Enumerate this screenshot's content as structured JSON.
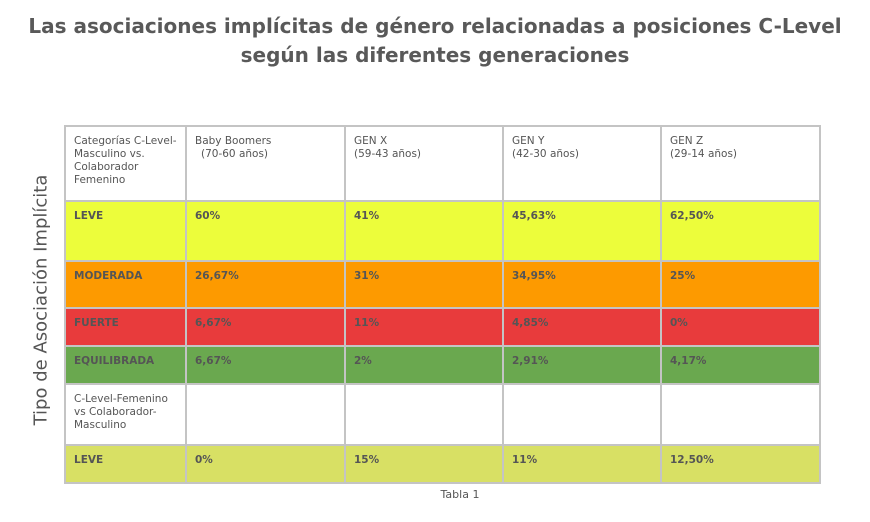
{
  "title_line1": "Las asociaciones implícitas de género relacionadas a posiciones C-Level",
  "title_line2": "según las diferentes generaciones",
  "y_axis_label": "Tipo de Asociación Implícita",
  "caption": "Tabla 1",
  "colors": {
    "leve": "#ecfd3b",
    "moderada": "#fd9a00",
    "fuerte": "#e83b3c",
    "equilibrada": "#6aa84f",
    "leve2": "#d8e064"
  },
  "chart_data": {
    "type": "table",
    "title": "Las asociaciones implícitas de género relacionadas a posiciones C-Level según las diferentes generaciones",
    "columns": [
      "Categorías C-Level-Masculino vs. Colaborador Femenino",
      "Baby Boomers (70-60 años)",
      "GEN X (59-43 años)",
      "GEN Y (42-30 años)",
      "GEN Z (29-14 años)"
    ],
    "header": {
      "c0": "Categorías C-Level-Masculino vs. Colaborador Femenino",
      "c1a": "Baby Boomers",
      "c1b": "(70-60 años)",
      "c2a": "GEN X",
      "c2b": "(59-43 años)",
      "c3a": "GEN Y",
      "c3b": "(42-30 años)",
      "c4a": "GEN Z",
      "c4b": "(29-14 años)"
    },
    "rows": [
      {
        "label": "LEVE",
        "values": [
          "60%",
          "41%",
          "45,63%",
          "62,50%"
        ]
      },
      {
        "label": "MODERADA",
        "values": [
          "26,67%",
          "31%",
          "34,95%",
          "25%"
        ]
      },
      {
        "label": "FUERTE",
        "values": [
          "6,67%",
          "11%",
          "4,85%",
          "0%"
        ]
      },
      {
        "label": "EQUILIBRADA",
        "values": [
          "6,67%",
          "2%",
          "2,91%",
          "4,17%"
        ]
      },
      {
        "label": "C-Level-Femenino vs Colaborador-Masculino",
        "values": [
          "",
          "",
          "",
          ""
        ]
      },
      {
        "label": "LEVE",
        "values": [
          "0%",
          "15%",
          "11%",
          "12,50%"
        ]
      }
    ]
  }
}
